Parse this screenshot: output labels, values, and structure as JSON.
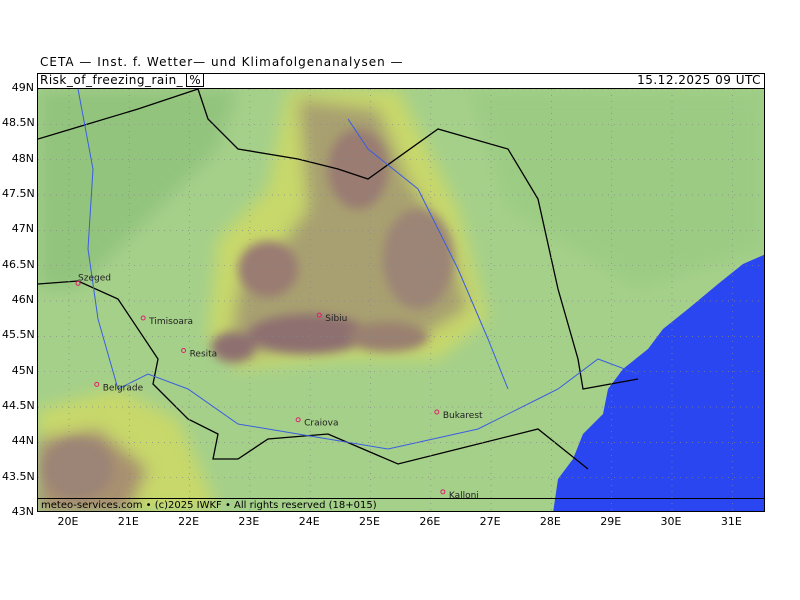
{
  "header": {
    "organization": "CETA — Inst. f. Wetter— und Klimafolgenanalysen —",
    "parameter": "Risk_of_freezing_rain_",
    "unit": "%",
    "valid_time": "15.12.2025 09 UTC"
  },
  "footer": {
    "credit": "meteo-services.com • (c)2025 IWKF • All rights reserved (18+015)"
  },
  "axes": {
    "lat_labels": [
      "49N",
      "48.5N",
      "48N",
      "47.5N",
      "47N",
      "46.5N",
      "46N",
      "45.5N",
      "45N",
      "44.5N",
      "44N",
      "43.5N",
      "43N"
    ],
    "lon_labels": [
      "20E",
      "21E",
      "22E",
      "23E",
      "24E",
      "25E",
      "26E",
      "27E",
      "28E",
      "29E",
      "30E",
      "31E"
    ]
  },
  "colors": {
    "low": "#8fc67e",
    "base": "#a5d08a",
    "mid": "#c8d86a",
    "high": "#a89070",
    "max": "#8a6e6e",
    "sea": "#2a46f0",
    "river": "#3a5ee0"
  },
  "cities": [
    {
      "name": "Szeged",
      "lon": 20.15,
      "lat": 46.25
    },
    {
      "name": "Timisoara",
      "lon": 21.23,
      "lat": 45.76
    },
    {
      "name": "Resita",
      "lon": 21.9,
      "lat": 45.3
    },
    {
      "name": "Belgrade",
      "lon": 20.46,
      "lat": 44.82
    },
    {
      "name": "Sibiu",
      "lon": 24.15,
      "lat": 45.8
    },
    {
      "name": "Craiova",
      "lon": 23.8,
      "lat": 44.32
    },
    {
      "name": "Bukarest",
      "lon": 26.1,
      "lat": 44.43
    },
    {
      "name": "Kalloni",
      "lon": 26.2,
      "lat": 43.3
    }
  ]
}
